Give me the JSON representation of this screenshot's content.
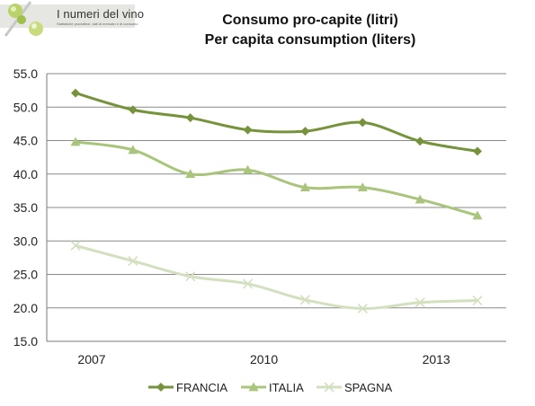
{
  "logo": {
    "title": "I numeri del vino",
    "subtitle": "Statistiche produttive, dati di mercato e di consumo"
  },
  "chart_data": {
    "type": "line",
    "title": "Consumo pro-capite (litri)",
    "subtitle": "Per capita consumption (liters)",
    "x": [
      2007,
      2008,
      2009,
      2010,
      2011,
      2012,
      2013,
      2014
    ],
    "x_tick_labels": [
      "2007",
      "2010",
      "2013"
    ],
    "y_tick_labels": [
      "15.0",
      "20.0",
      "25.0",
      "30.0",
      "35.0",
      "40.0",
      "45.0",
      "50.0",
      "55.0"
    ],
    "ylim": [
      15,
      55
    ],
    "grid": "horizontal",
    "legend_position": "bottom",
    "series": [
      {
        "name": "FRANCIA",
        "values": [
          52.1,
          49.6,
          48.4,
          46.6,
          46.4,
          47.7,
          44.9,
          43.4
        ],
        "color": "#76933c",
        "marker": "diamond"
      },
      {
        "name": "ITALIA",
        "values": [
          44.8,
          43.6,
          40.0,
          40.6,
          38.0,
          38.0,
          36.2,
          33.8
        ],
        "color": "#a9c57c",
        "marker": "triangle"
      },
      {
        "name": "SPAGNA",
        "values": [
          29.3,
          27.0,
          24.7,
          23.6,
          21.2,
          19.9,
          20.8,
          21.1
        ],
        "color": "#d3e0bf",
        "marker": "x"
      }
    ]
  }
}
